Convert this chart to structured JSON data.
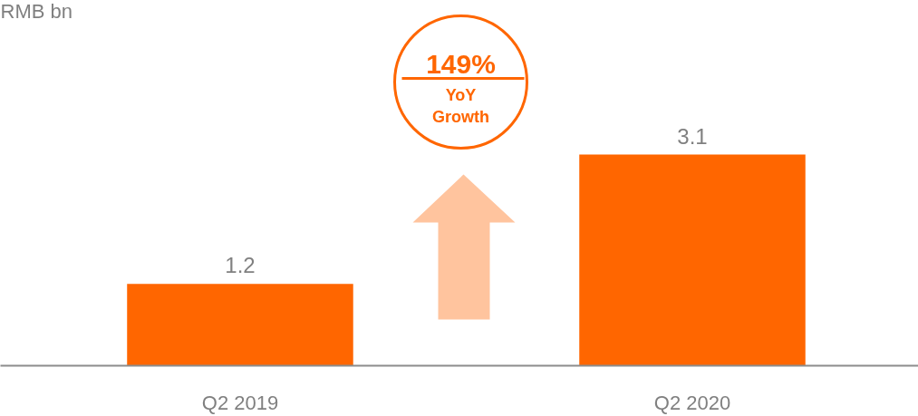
{
  "chart_data": {
    "type": "bar",
    "categories": [
      "Q2 2019",
      "Q2 2020"
    ],
    "values": [
      1.2,
      3.1
    ],
    "color": "#ff6600",
    "data_labels": true,
    "annotations": [
      "RMB bn",
      "149%",
      "YoY Growth"
    ]
  }
}
